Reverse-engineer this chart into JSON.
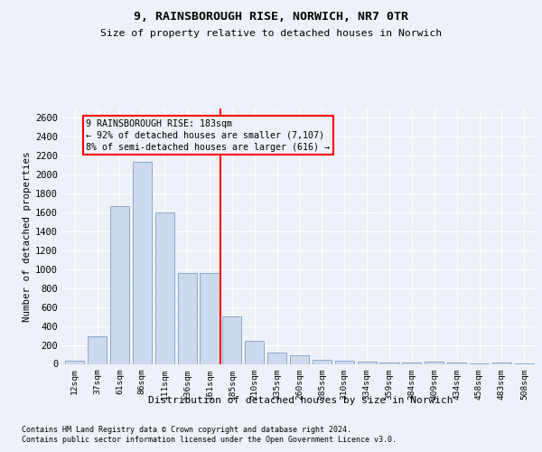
{
  "title1": "9, RAINSBOROUGH RISE, NORWICH, NR7 0TR",
  "title2": "Size of property relative to detached houses in Norwich",
  "xlabel": "Distribution of detached houses by size in Norwich",
  "ylabel": "Number of detached properties",
  "categories": [
    "12sqm",
    "37sqm",
    "61sqm",
    "86sqm",
    "111sqm",
    "136sqm",
    "161sqm",
    "185sqm",
    "210sqm",
    "235sqm",
    "260sqm",
    "285sqm",
    "310sqm",
    "334sqm",
    "359sqm",
    "384sqm",
    "409sqm",
    "434sqm",
    "458sqm",
    "483sqm",
    "508sqm"
  ],
  "values": [
    30,
    290,
    1670,
    2140,
    1600,
    960,
    960,
    500,
    245,
    115,
    90,
    40,
    35,
    25,
    15,
    10,
    20,
    10,
    5,
    15,
    5
  ],
  "bar_color": "#cddaed",
  "bar_edge_color": "#7a9fc4",
  "red_line_index": 7,
  "annotation_line1": "9 RAINSBOROUGH RISE: 183sqm",
  "annotation_line2": "← 92% of detached houses are smaller (7,107)",
  "annotation_line3": "8% of semi-detached houses are larger (616) →",
  "ylim_min": 0,
  "ylim_max": 2700,
  "yticks": [
    0,
    200,
    400,
    600,
    800,
    1000,
    1200,
    1400,
    1600,
    1800,
    2000,
    2200,
    2400,
    2600
  ],
  "footnote1": "Contains HM Land Registry data © Crown copyright and database right 2024.",
  "footnote2": "Contains public sector information licensed under the Open Government Licence v3.0.",
  "bg_color": "#eef2f8",
  "grid_color": "#ffffff"
}
